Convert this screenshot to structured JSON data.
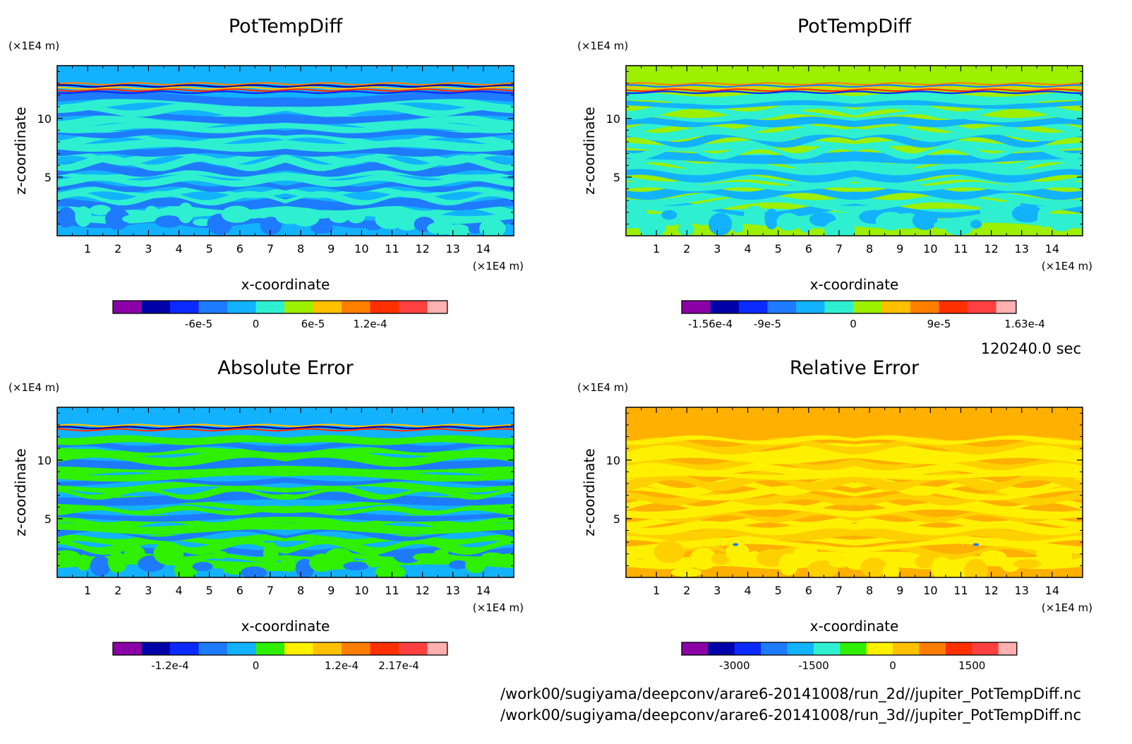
{
  "chart_data": [
    {
      "type": "heatmap",
      "title": "PotTempDiff",
      "xlabel": "x-coordinate",
      "ylabel": "z-coordinate",
      "x_unit": "(×1E4 m)",
      "z_unit": "(×1E4 m)",
      "xlim": [
        0,
        15
      ],
      "ylim": [
        0,
        14.5
      ],
      "x_ticks": [
        "1",
        "2",
        "3",
        "4",
        "5",
        "6",
        "7",
        "8",
        "9",
        "10",
        "11",
        "12",
        "13",
        "14"
      ],
      "y_ticks": [
        "5",
        "10"
      ],
      "colorbar": {
        "colors": [
          "#8B00A6",
          "#0000A8",
          "#0A2AFF",
          "#1E7BFF",
          "#13B2FF",
          "#2EF0D0",
          "#9CF000",
          "#FFC000",
          "#FF7E00",
          "#FF3000",
          "#FF4040",
          "#FFB0B0"
        ],
        "tick_labels": [
          "-6e-5",
          "0",
          "6e-5",
          "1.2e-4"
        ],
        "tick_index": [
          2,
          4,
          6,
          8
        ]
      },
      "background": "#13B2FF",
      "band_colors": [
        "#1E7BFF",
        "#2EF0D0",
        "#2EF0D0"
      ],
      "top_band_colors": [
        "#FF7E00",
        "#0000A8",
        "#FFC000",
        "#FF3000",
        "#0A2AFF"
      ]
    },
    {
      "type": "heatmap",
      "title": "PotTempDiff",
      "xlabel": "x-coordinate",
      "ylabel": "z-coordinate",
      "x_unit": "(×1E4 m)",
      "z_unit": "(×1E4 m)",
      "xlim": [
        0,
        15
      ],
      "ylim": [
        0,
        14.5
      ],
      "x_ticks": [
        "1",
        "2",
        "3",
        "4",
        "5",
        "6",
        "7",
        "8",
        "9",
        "10",
        "11",
        "12",
        "13",
        "14"
      ],
      "y_ticks": [
        "5",
        "10"
      ],
      "colorbar": {
        "colors": [
          "#8B00A6",
          "#0000A8",
          "#0A2AFF",
          "#1E7BFF",
          "#13B2FF",
          "#2EF0D0",
          "#9CF000",
          "#FFC000",
          "#FF7E00",
          "#FF3000",
          "#FF4040",
          "#FFB0B0"
        ],
        "tick_labels": [
          "-1.56e-4",
          "-9e-5",
          "0",
          "9e-5",
          "1.63e-4"
        ],
        "tick_index": [
          0,
          2,
          5,
          8,
          11
        ]
      },
      "background": "#9CF000",
      "band_colors": [
        "#2EF0D0",
        "#2EF0D0",
        "#13B2FF"
      ],
      "top_band_colors": [
        "#FF7E00",
        "#1E7BFF",
        "#FFC000",
        "#FF3000",
        "#0A2AFF"
      ]
    },
    {
      "type": "heatmap",
      "title": "Absolute Error",
      "xlabel": "x-coordinate",
      "ylabel": "z-coordinate",
      "x_unit": "(×1E4 m)",
      "z_unit": "(×1E4 m)",
      "xlim": [
        0,
        15
      ],
      "ylim": [
        0,
        14.5
      ],
      "x_ticks": [
        "1",
        "2",
        "3",
        "4",
        "5",
        "6",
        "7",
        "8",
        "9",
        "10",
        "11",
        "12",
        "13",
        "14"
      ],
      "y_ticks": [
        "5",
        "10"
      ],
      "colorbar": {
        "colors": [
          "#8B00A6",
          "#0000A8",
          "#0A2AFF",
          "#1E7BFF",
          "#13B2FF",
          "#2EF000",
          "#FFF000",
          "#FFC000",
          "#FF7E00",
          "#FF3000",
          "#FF4040",
          "#FFB0B0"
        ],
        "tick_labels": [
          "-1.2e-4",
          "0",
          "1.2e-4",
          "2.17e-4"
        ],
        "tick_index": [
          1,
          4,
          7,
          9
        ]
      },
      "background": "#13B2FF",
      "band_colors": [
        "#2EF000",
        "#2EF000",
        "#1E7BFF"
      ],
      "top_band_colors": [
        "#FFC000",
        "#0000A8",
        "#FF3000"
      ]
    },
    {
      "type": "heatmap",
      "title": "Relative Error",
      "xlabel": "x-coordinate",
      "ylabel": "z-coordinate",
      "x_unit": "(×1E4 m)",
      "z_unit": "(×1E4 m)",
      "xlim": [
        0,
        15
      ],
      "ylim": [
        0,
        14.5
      ],
      "x_ticks": [
        "1",
        "2",
        "3",
        "4",
        "5",
        "6",
        "7",
        "8",
        "9",
        "10",
        "11",
        "12",
        "13",
        "14"
      ],
      "y_ticks": [
        "5",
        "10"
      ],
      "colorbar": {
        "colors": [
          "#8B00A6",
          "#0000A8",
          "#0A2AFF",
          "#1E7BFF",
          "#13B2FF",
          "#2EF0D0",
          "#2EF000",
          "#FFF000",
          "#FFC000",
          "#FF7E00",
          "#FF3000",
          "#FF4040",
          "#FFB0B0"
        ],
        "tick_labels": [
          "-3000",
          "-1500",
          "0",
          "1500"
        ],
        "tick_index": [
          1,
          4,
          7,
          10
        ]
      },
      "background": "#FFB000",
      "band_colors": [
        "#FFF000",
        "#FFF000",
        "#FFD000"
      ],
      "top_band_colors": []
    }
  ],
  "time_label": "120240.0 sec",
  "file_paths": [
    "/work00/sugiyama/deepconv/arare6-20141008/run_2d//jupiter_PotTempDiff.nc",
    "/work00/sugiyama/deepconv/arare6-20141008/run_3d//jupiter_PotTempDiff.nc"
  ]
}
